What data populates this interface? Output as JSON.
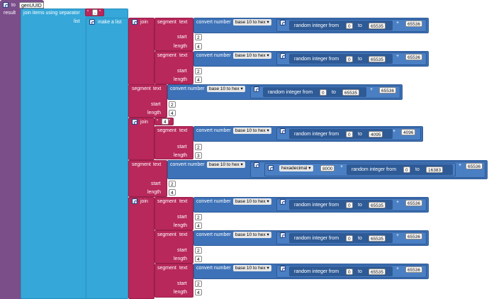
{
  "procedure": {
    "keyword": "to",
    "name": "genUUID",
    "result_label": "result"
  },
  "join_sep": {
    "label": "join items using separator",
    "separator": "-"
  },
  "list": {
    "label": "list",
    "make_label": "make a list"
  },
  "labels": {
    "join": "join",
    "segment": "segment",
    "text": "text",
    "convert": "convert number",
    "base": "base 10 to hex",
    "random": "random integer from",
    "to": "to",
    "start": "start",
    "length": "length",
    "plus": "+",
    "hexadecimal": "hexadecimal"
  },
  "segments": [
    {
      "from": "0",
      "to": "65535",
      "add": "65536",
      "start": "2",
      "length": "4"
    },
    {
      "from": "0",
      "to": "65535",
      "add": "65536",
      "start": "2",
      "length": "4"
    },
    {
      "from": "0",
      "to": "65535",
      "add": "65536",
      "start": "2",
      "length": "4"
    },
    {
      "from": "0",
      "to": "4095",
      "add": "4096",
      "start": "2",
      "length": "3"
    },
    {
      "hex": "8000",
      "from": "0",
      "to": "16383",
      "add": "65536",
      "start": "2",
      "length": "4"
    },
    {
      "from": "0",
      "to": "65535",
      "add": "65536",
      "start": "2",
      "length": "4"
    },
    {
      "from": "0",
      "to": "65535",
      "add": "65536",
      "start": "2",
      "length": "4"
    },
    {
      "from": "0",
      "to": "65535",
      "add": "65536",
      "start": "2",
      "length": "4"
    }
  ],
  "join2_prefix": "4"
}
